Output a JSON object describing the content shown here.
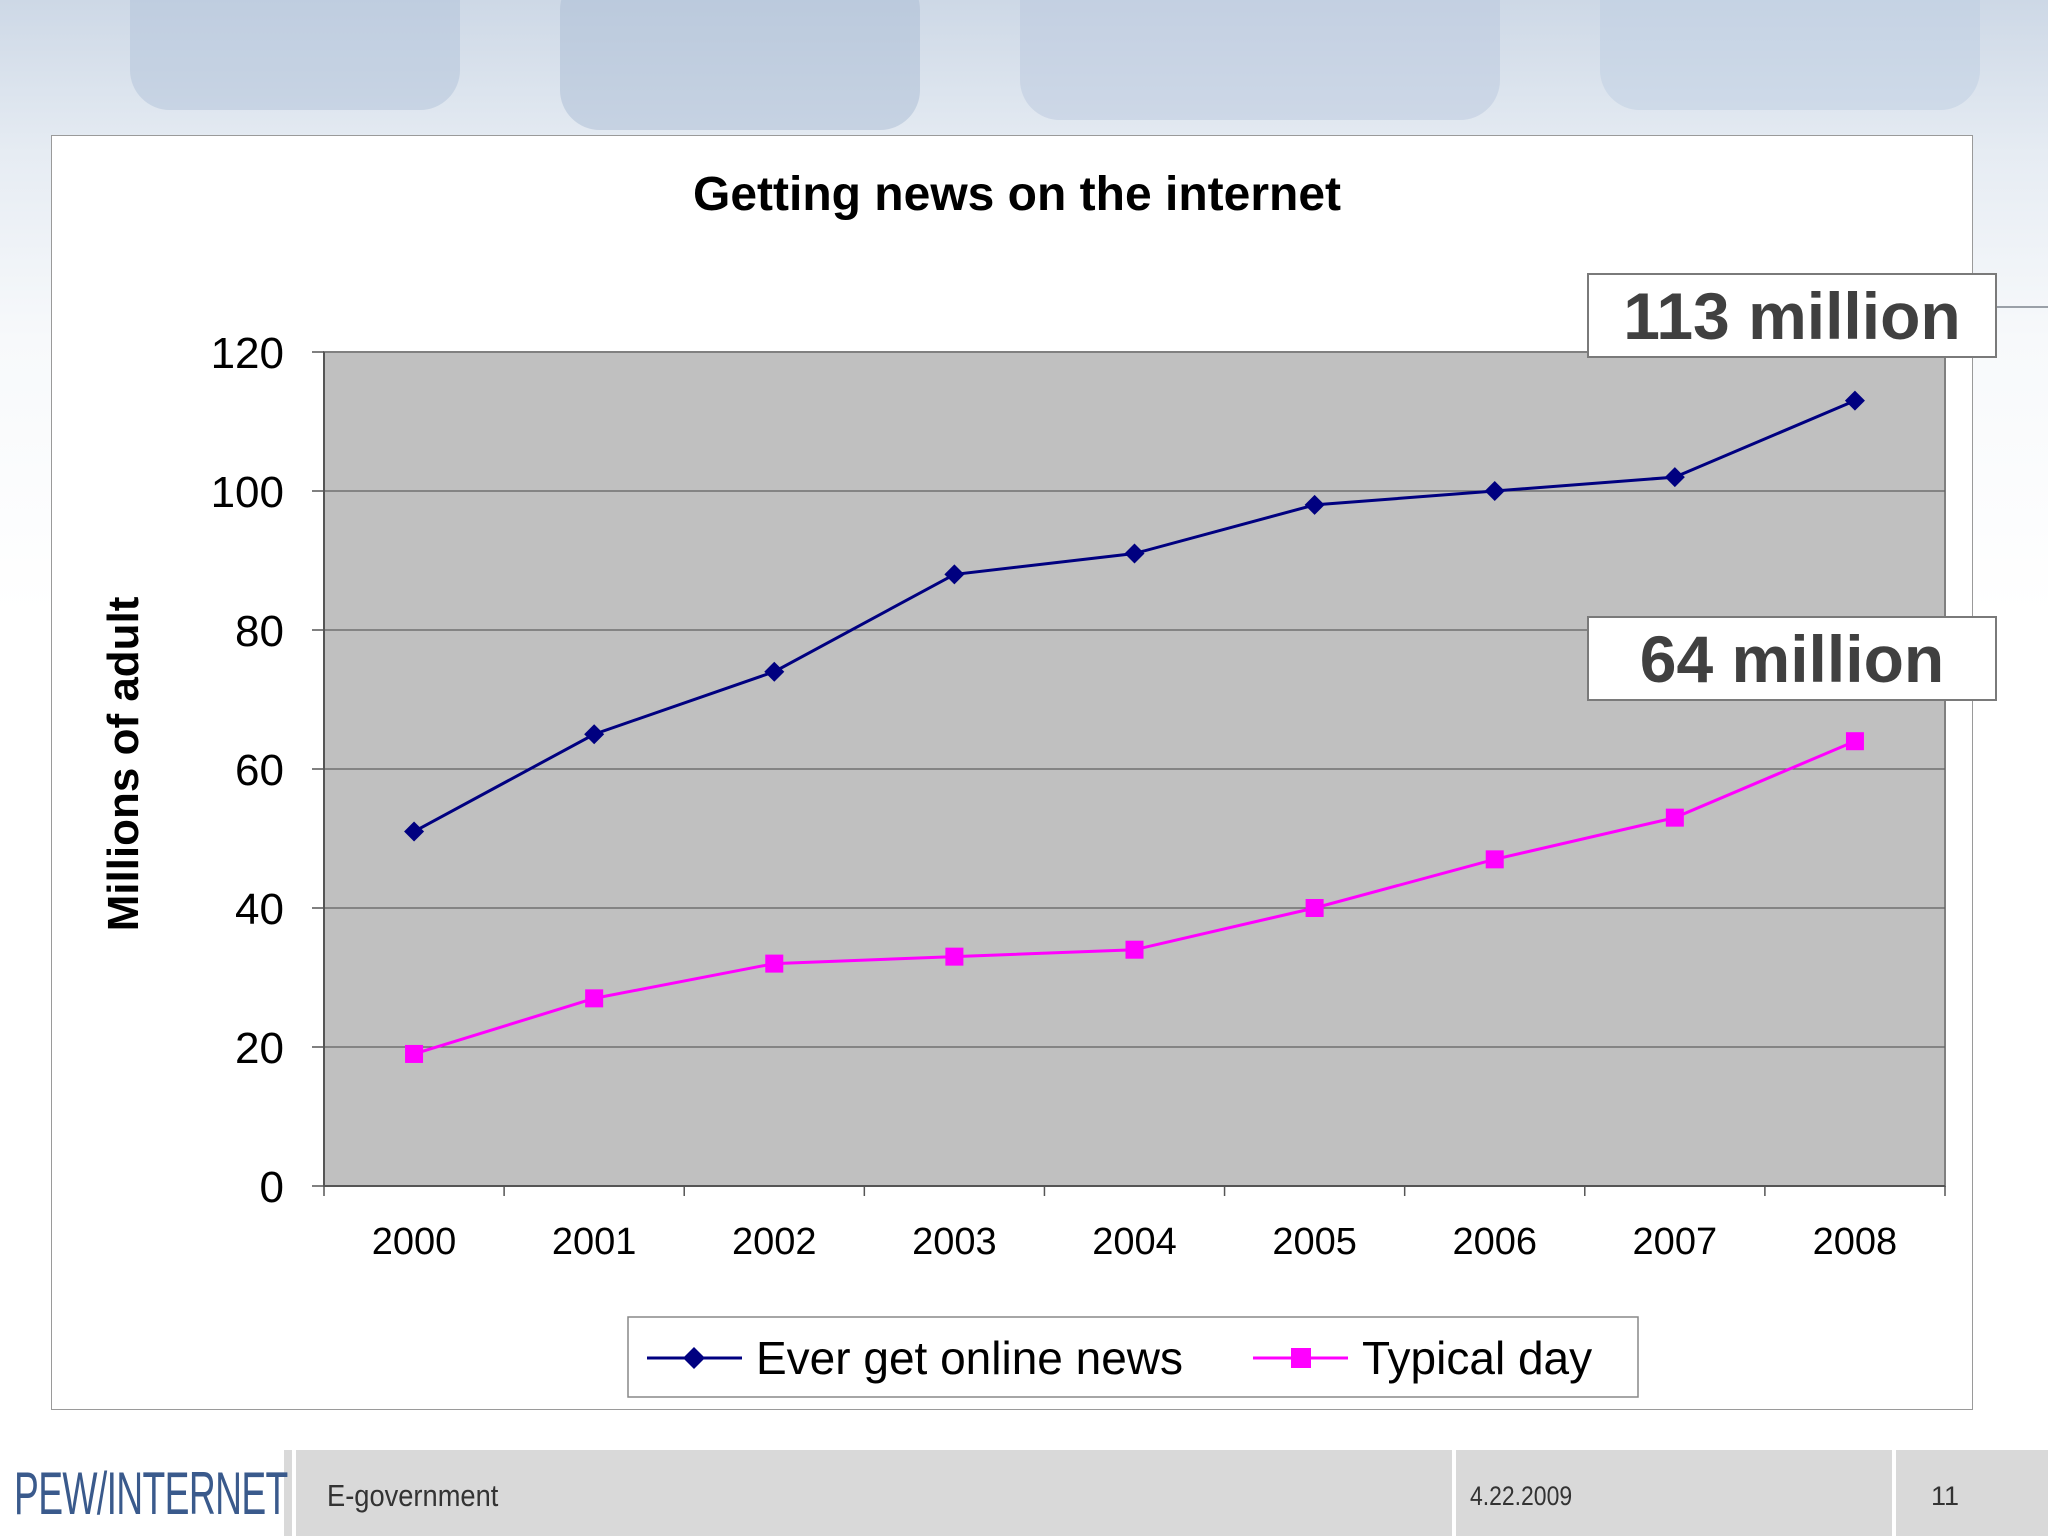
{
  "slide": {
    "footer_title": "E-government",
    "footer_date": "4.22.2009",
    "page_number": "11",
    "logo_text": "PEW/INTERNET"
  },
  "callouts": {
    "top": "113 million",
    "bottom": "64 million"
  },
  "colors": {
    "plot_bg": "#c0c0c0",
    "series1": "#000080",
    "series2": "#ff00ff",
    "gridline": "#606060"
  },
  "chart_data": {
    "type": "line",
    "title": "Getting news on the internet",
    "xlabel": "",
    "ylabel": "Millions of adult",
    "categories": [
      "2000",
      "2001",
      "2002",
      "2003",
      "2004",
      "2005",
      "2006",
      "2007",
      "2008"
    ],
    "ylim": [
      0,
      120
    ],
    "yticks": [
      "0",
      "20",
      "40",
      "60",
      "80",
      "100",
      "120"
    ],
    "grid": true,
    "legend_position": "bottom",
    "series": [
      {
        "name": "Ever get online news",
        "marker": "diamond",
        "color": "#000080",
        "values": [
          51,
          65,
          74,
          88,
          91,
          98,
          100,
          102,
          113
        ]
      },
      {
        "name": "Typical day",
        "marker": "square",
        "color": "#ff00ff",
        "values": [
          19,
          27,
          32,
          33,
          34,
          40,
          47,
          53,
          64
        ]
      }
    ]
  }
}
